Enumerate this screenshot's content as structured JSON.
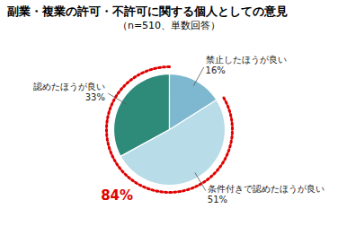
{
  "chart_data": {
    "type": "pie",
    "title": "副業・複業の許可・不許可に関する個人としての意見",
    "subtitle": "（n=510、単数回答）",
    "categories": [
      "認めたほうが良い",
      "条件付きで認めたほうが良い",
      "禁止したほうが良い"
    ],
    "values": [
      33,
      51,
      16
    ],
    "value_labels": [
      "33%",
      "51%",
      "16%"
    ],
    "colors": [
      "#2e8b7a",
      "#b8dce8",
      "#7db8d0"
    ],
    "data_labels": true,
    "annotations": [
      {
        "text": "84%",
        "value": 84,
        "color": "#e00000"
      }
    ]
  }
}
